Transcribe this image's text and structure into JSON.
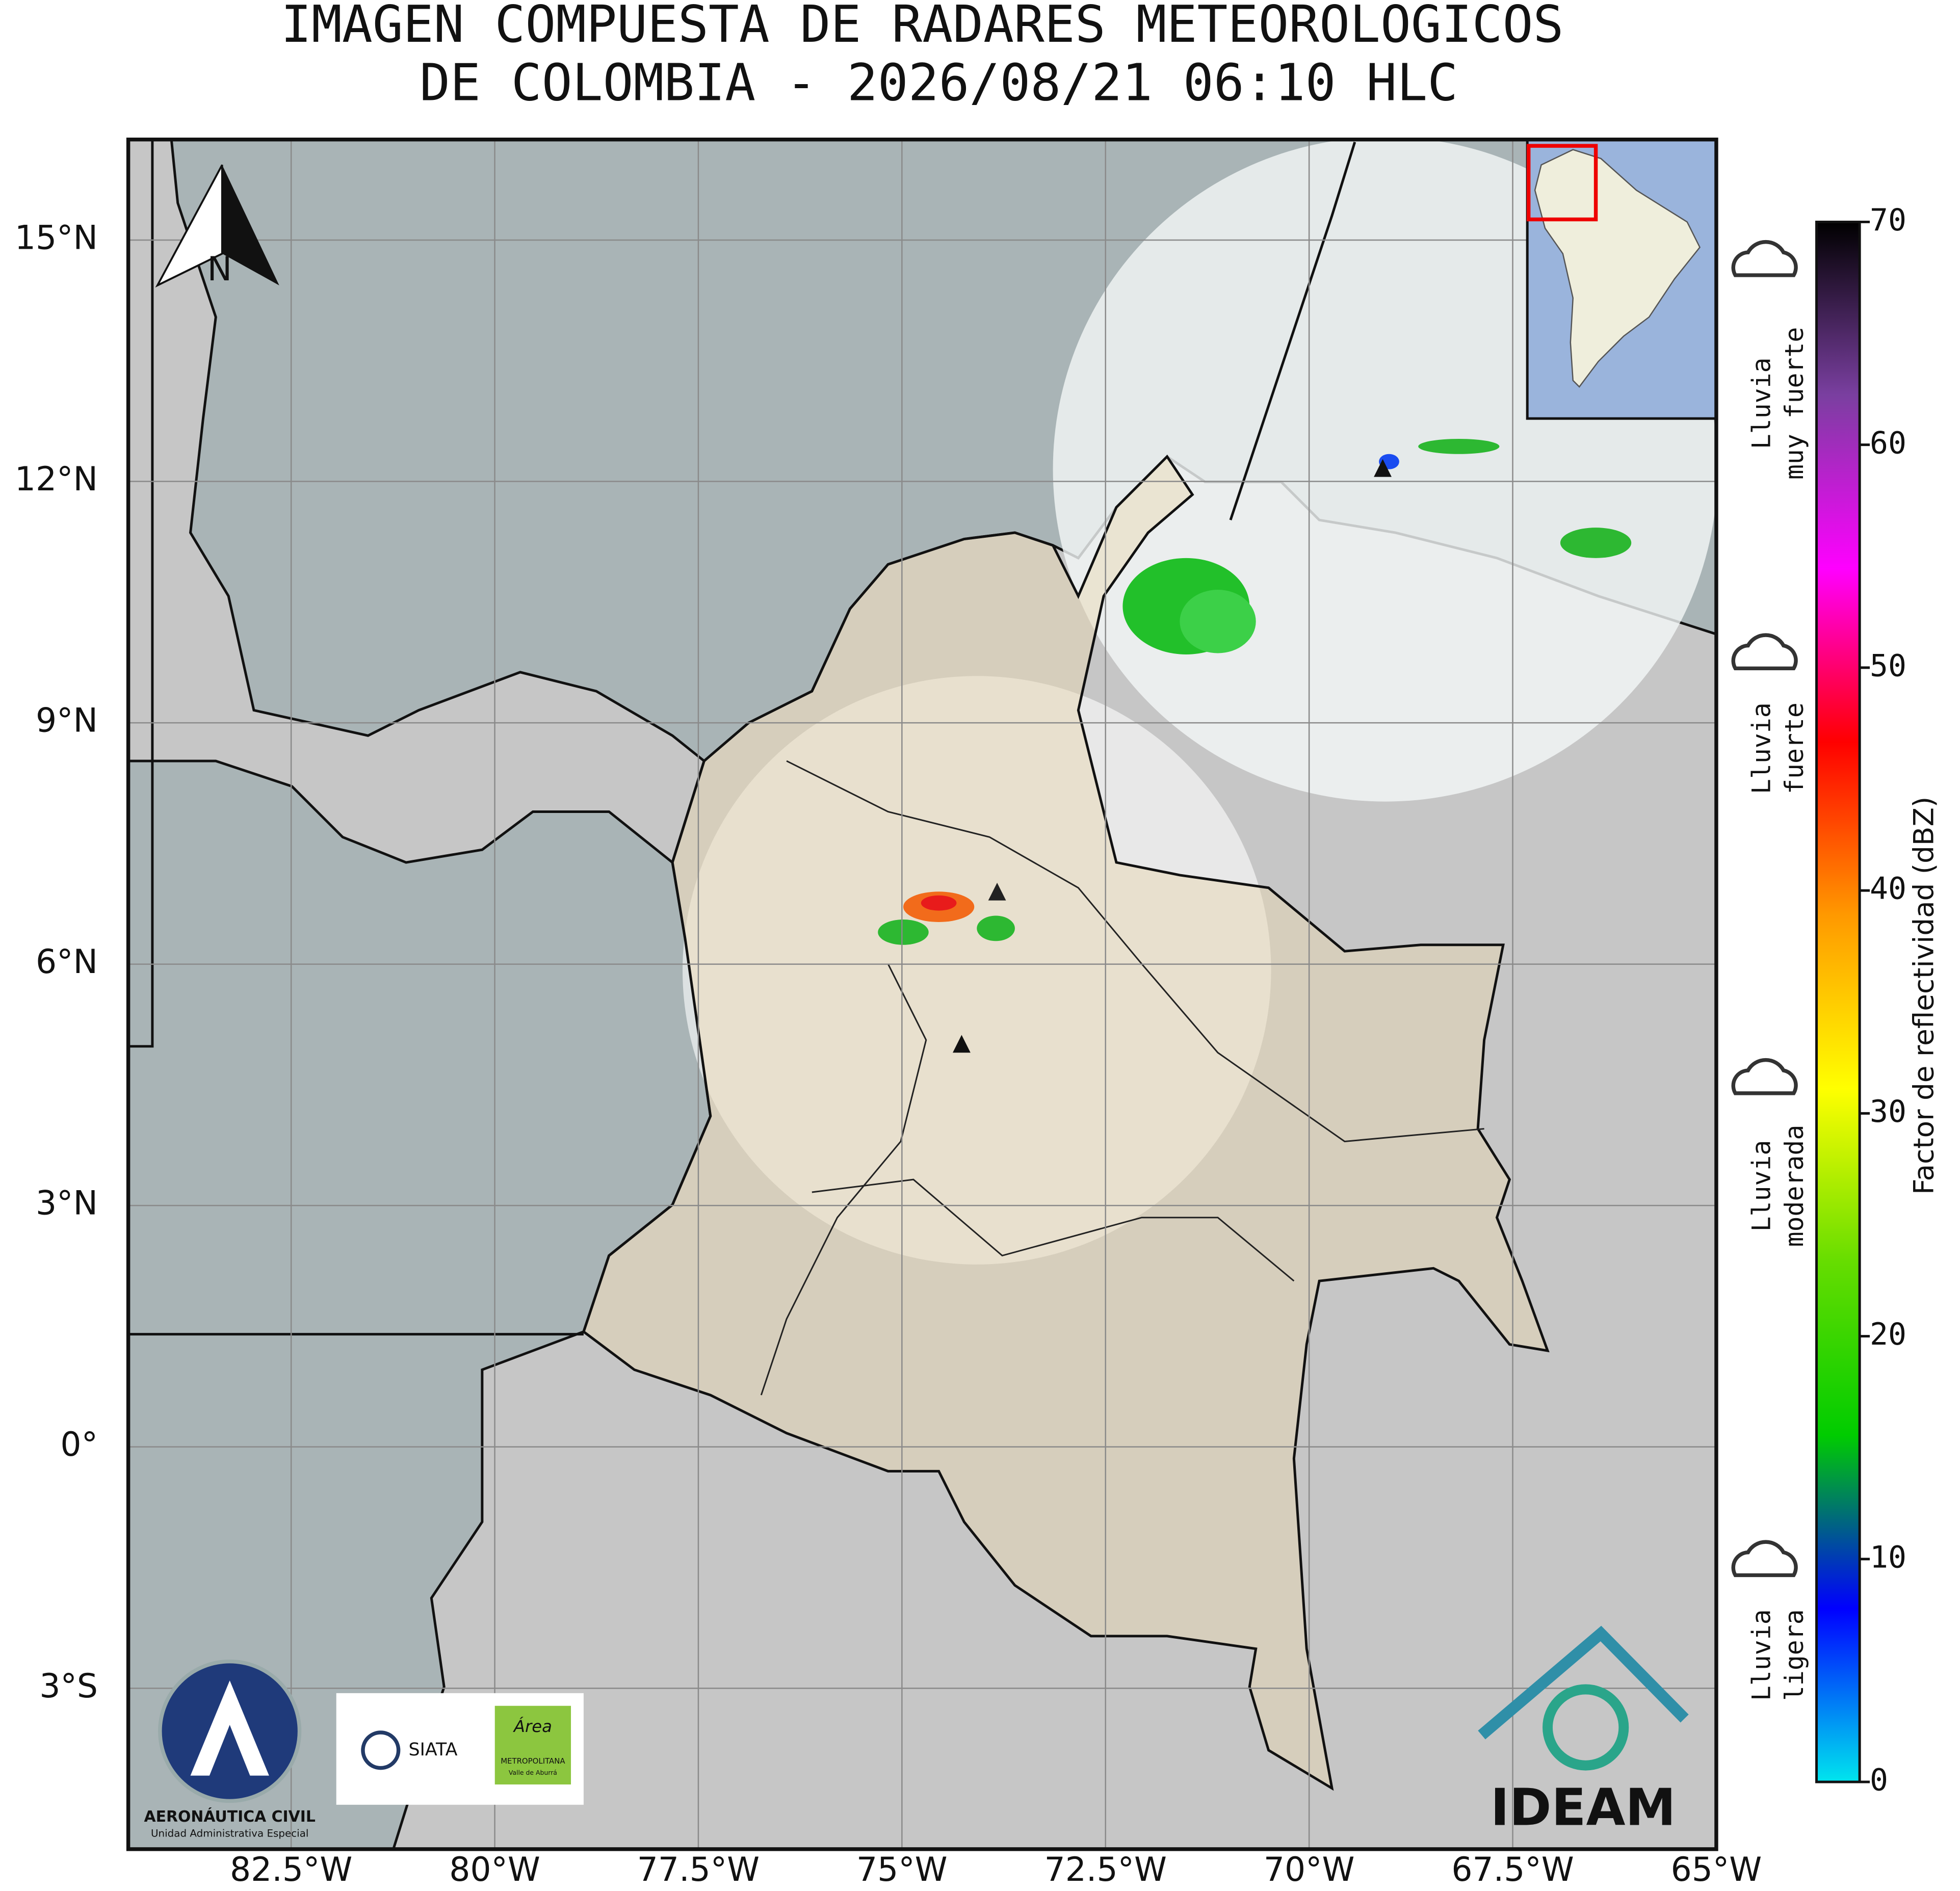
{
  "title": [
    "IMAGEN COMPUESTA DE RADARES METEOROLOGICOS",
    "DE COLOMBIA - 2026/08/21 06:10 HLC"
  ],
  "map": {
    "xlim": [
      -84.5,
      -65
    ],
    "ylim": [
      -5,
      16.25
    ],
    "grid": true,
    "north_label": "N",
    "xticks": [
      {
        "value": -82.5,
        "label": "82.5°W"
      },
      {
        "value": -80,
        "label": "80°W"
      },
      {
        "value": -77.5,
        "label": "77.5°W"
      },
      {
        "value": -75,
        "label": "75°W"
      },
      {
        "value": -72.5,
        "label": "72.5°W"
      },
      {
        "value": -70,
        "label": "70°W"
      },
      {
        "value": -67.5,
        "label": "67.5°W"
      },
      {
        "value": -65,
        "label": "65°W"
      }
    ],
    "yticks": [
      {
        "value": 15,
        "label": "15°N"
      },
      {
        "value": 12,
        "label": "12°N"
      },
      {
        "value": 9,
        "label": "9°N"
      },
      {
        "value": 6,
        "label": "6°N"
      },
      {
        "value": 3,
        "label": "3°N"
      },
      {
        "value": 0,
        "label": "0°"
      },
      {
        "value": -3,
        "label": "3°S"
      }
    ]
  },
  "colorbar": {
    "label": "Factor de reflectividad (dBZ)",
    "lim": [
      0,
      70
    ],
    "ticks": [
      0,
      10,
      20,
      30,
      40,
      50,
      60,
      70
    ],
    "colors": [
      "#00e5ee",
      "#0000ff",
      "#00cc00",
      "#66dd00",
      "#ffff00",
      "#ff9900",
      "#ff0000",
      "#ff00ff",
      "#7a3fa0",
      "#000000"
    ]
  },
  "rain_labels": [
    [
      "Lluvia",
      "ligera"
    ],
    [
      "Lluvia",
      "moderada"
    ],
    [
      "Lluvia",
      "fuerte"
    ],
    [
      "Lluvia",
      "muy fuerte"
    ]
  ],
  "logos": {
    "aerocivil": [
      "AERONÁUTICA CIVIL",
      "Unidad Administrativa Especial"
    ],
    "siata": "SIATA",
    "area": [
      "Área",
      "METROPOLITANA",
      "Valle de Aburrá"
    ],
    "ideam": "IDEAM"
  }
}
